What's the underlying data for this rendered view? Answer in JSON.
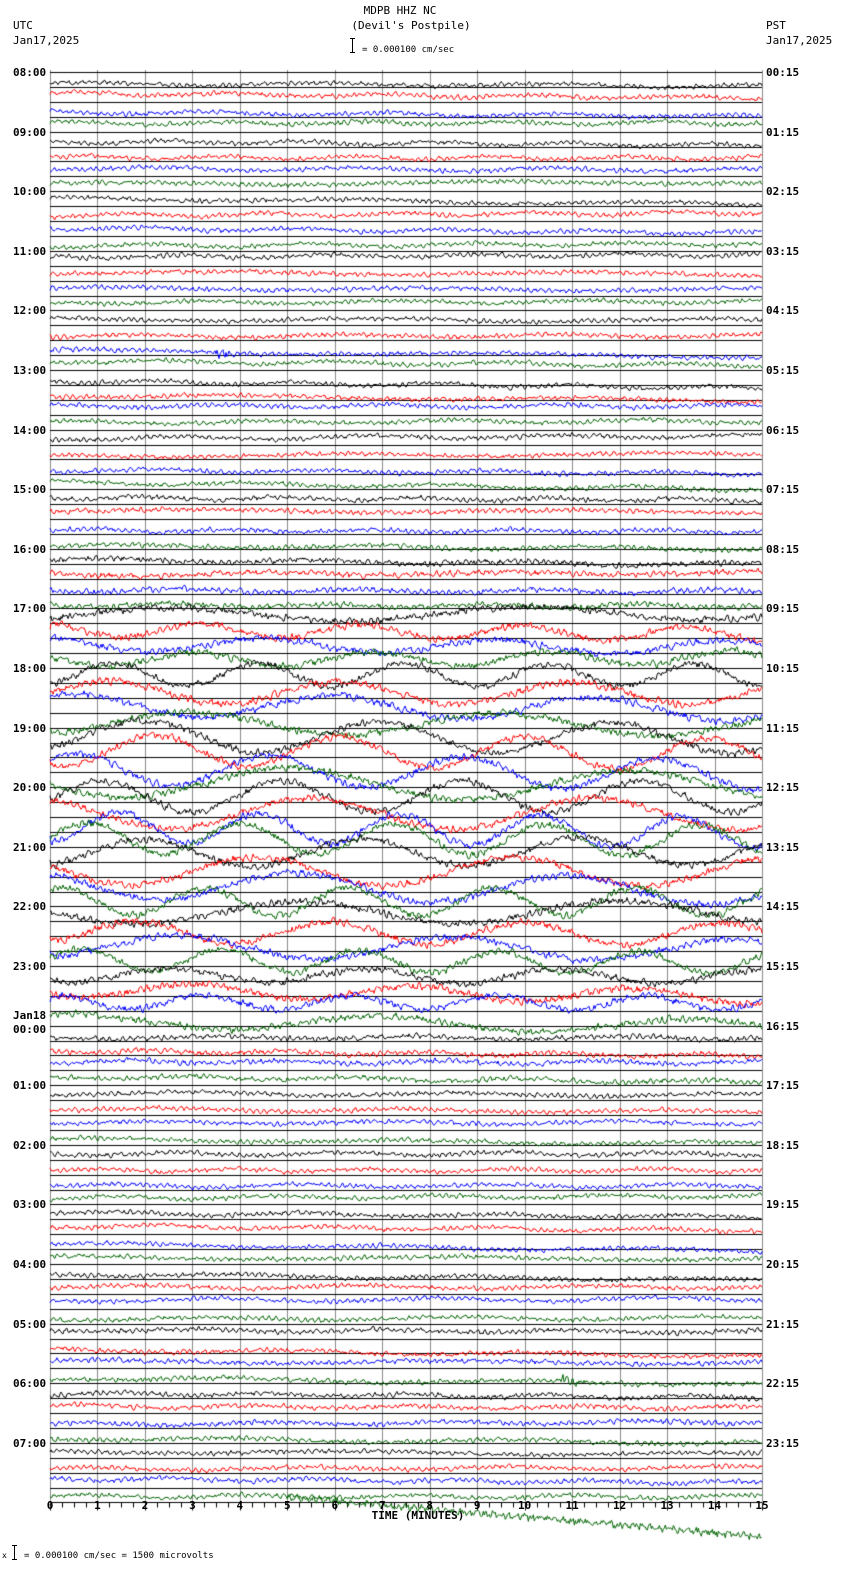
{
  "header": {
    "station": "MDPB HHZ NC",
    "location": "(Devil's Postpile)",
    "scale_text": "= 0.000100 cm/sec",
    "left_tz": "UTC",
    "left_date": "Jan17,2025",
    "right_tz": "PST",
    "right_date": "Jan17,2025"
  },
  "footer": {
    "xlabel": "TIME (MINUTES)",
    "scale_note_prefix": "x",
    "scale_note": "= 0.000100 cm/sec =    1500 microvolts"
  },
  "chart_data": {
    "type": "line",
    "title": "MDPB HHZ NC (Devil's Postpile)",
    "subtitle": "Helicorder seismogram, 15-minute lines",
    "xlabel": "TIME (MINUTES)",
    "ylabel": "",
    "xlim": [
      0,
      15
    ],
    "x_ticks": [
      "0",
      "1",
      "2",
      "3",
      "4",
      "5",
      "6",
      "7",
      "8",
      "9",
      "10",
      "11",
      "12",
      "13",
      "14",
      "15"
    ],
    "grid": true,
    "trace_colors": [
      "#000000",
      "#ff0000",
      "#0000ff",
      "#006400"
    ],
    "traces_per_hour": 4,
    "minutes_per_trace": 15,
    "scale": "0.000100 cm/sec = 1500 microvolts",
    "left_labels_utc": [
      "08:00",
      "09:00",
      "10:00",
      "11:00",
      "12:00",
      "13:00",
      "14:00",
      "15:00",
      "16:00",
      "17:00",
      "18:00",
      "19:00",
      "20:00",
      "21:00",
      "22:00",
      "23:00",
      "Jan18 00:00",
      "01:00",
      "02:00",
      "03:00",
      "04:00",
      "05:00",
      "06:00",
      "07:00"
    ],
    "right_labels_pst": [
      "00:15",
      "01:15",
      "02:15",
      "03:15",
      "04:15",
      "05:15",
      "06:15",
      "07:15",
      "08:15",
      "09:15",
      "10:15",
      "11:15",
      "12:15",
      "13:15",
      "14:15",
      "15:15",
      "16:15",
      "17:15",
      "18:15",
      "19:15",
      "20:15",
      "21:15",
      "22:15",
      "23:15"
    ],
    "activity_level_per_hour": [
      1.0,
      1.0,
      1.0,
      1.0,
      1.0,
      1.0,
      1.0,
      1.1,
      1.4,
      2.0,
      2.6,
      3.2,
      3.2,
      3.0,
      2.6,
      2.0,
      1.2,
      1.0,
      1.0,
      1.0,
      1.0,
      1.1,
      1.1,
      1.0
    ],
    "events": [
      {
        "hour_index": 4,
        "trace": 2,
        "minute": 3.5,
        "note": "small local event (blue trace, ~12:15 UTC)"
      },
      {
        "hour_index": 21,
        "trace": 3,
        "minute": 10.8,
        "note": "small local event (green trace, ~05:45 UTC)"
      }
    ]
  }
}
